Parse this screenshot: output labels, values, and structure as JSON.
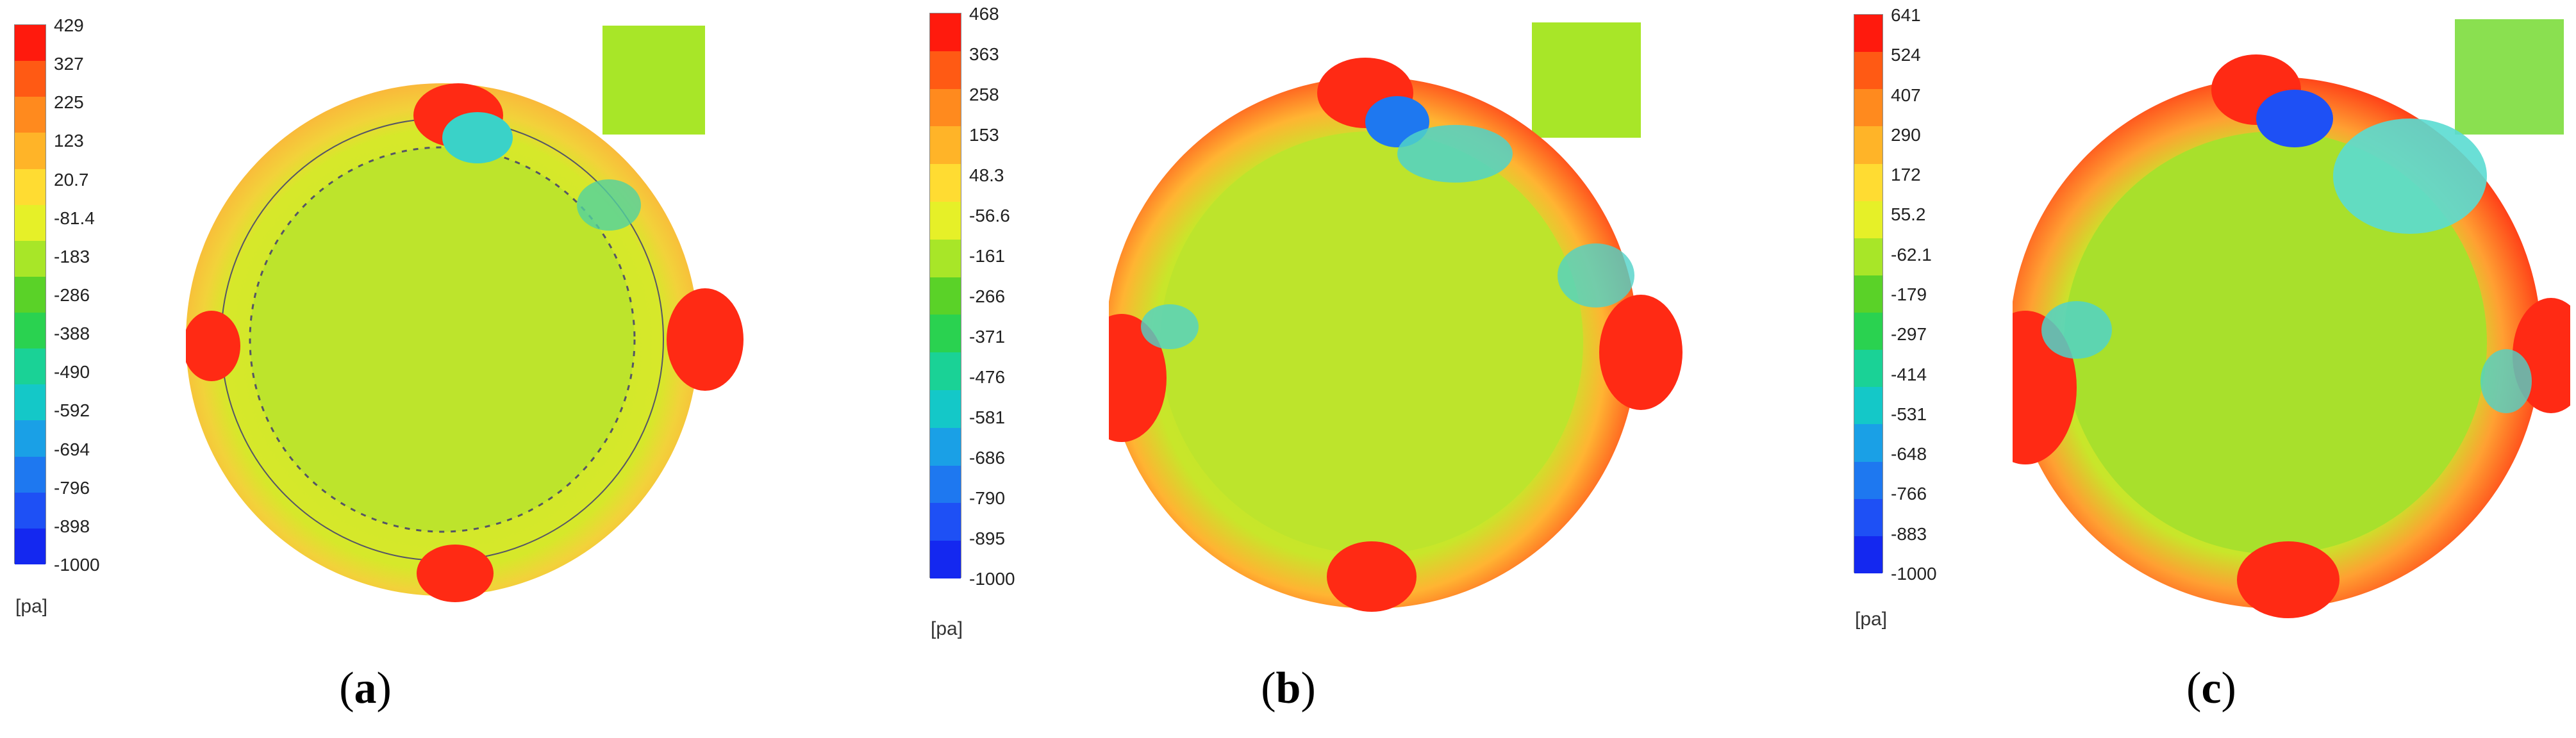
{
  "panels": [
    {
      "label": "a",
      "unit": "[pa]",
      "ticks": [
        "429",
        "327",
        "225",
        "123",
        "20.7",
        "-81.4",
        "-183",
        "-286",
        "-388",
        "-490",
        "-592",
        "-694",
        "-796",
        "-898",
        "-1000"
      ]
    },
    {
      "label": "b",
      "unit": "[pa]",
      "ticks": [
        "468",
        "363",
        "258",
        "153",
        "48.3",
        "-56.6",
        "-161",
        "-266",
        "-371",
        "-476",
        "-581",
        "-686",
        "-790",
        "-895",
        "-1000"
      ]
    },
    {
      "label": "c",
      "unit": "[pa]",
      "ticks": [
        "641",
        "524",
        "407",
        "290",
        "172",
        "55.2",
        "-62.1",
        "-179",
        "-297",
        "-414",
        "-531",
        "-648",
        "-766",
        "-883",
        "-1000"
      ]
    }
  ],
  "colormap": [
    "#ff1a0d",
    "#ff5a14",
    "#ff8a1e",
    "#ffb428",
    "#ffdc32",
    "#e6f028",
    "#a8e628",
    "#5ad228",
    "#2ad250",
    "#1ad296",
    "#14c8c8",
    "#1aa0e6",
    "#1e78f0",
    "#1e50f5",
    "#1428f0"
  ]
}
